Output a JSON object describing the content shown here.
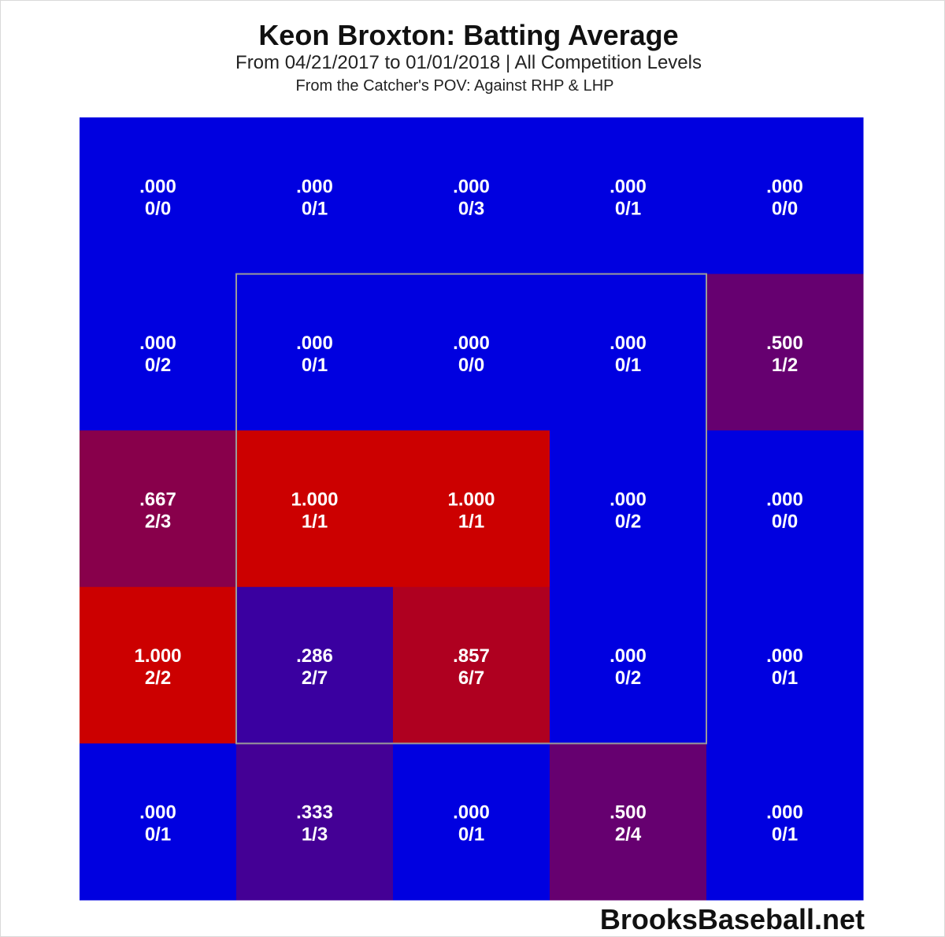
{
  "title": "Keon Broxton: Batting Average",
  "subtitle": "From 04/21/2017 to 01/01/2018 | All Competition Levels",
  "subtitle2": "From the Catcher's POV:   Against RHP & LHP",
  "credit": "BrooksBaseball.net",
  "colors": {
    "low": "#0000e0",
    "high": "#cc0000",
    "strike_zone_border": "#9a9a9a"
  },
  "chart_data": {
    "type": "heatmap",
    "title": "Keon Broxton: Batting Average",
    "rows": 5,
    "cols": 5,
    "strike_zone": {
      "rows": [
        1,
        3
      ],
      "cols": [
        1,
        3
      ]
    },
    "cells": [
      [
        {
          "avg": ".000",
          "ratio": "0/0",
          "value": 0.0
        },
        {
          "avg": ".000",
          "ratio": "0/1",
          "value": 0.0
        },
        {
          "avg": ".000",
          "ratio": "0/3",
          "value": 0.0
        },
        {
          "avg": ".000",
          "ratio": "0/1",
          "value": 0.0
        },
        {
          "avg": ".000",
          "ratio": "0/0",
          "value": 0.0
        }
      ],
      [
        {
          "avg": ".000",
          "ratio": "0/2",
          "value": 0.0
        },
        {
          "avg": ".000",
          "ratio": "0/1",
          "value": 0.0
        },
        {
          "avg": ".000",
          "ratio": "0/0",
          "value": 0.0
        },
        {
          "avg": ".000",
          "ratio": "0/1",
          "value": 0.0
        },
        {
          "avg": ".500",
          "ratio": "1/2",
          "value": 0.5
        }
      ],
      [
        {
          "avg": ".667",
          "ratio": "2/3",
          "value": 0.667
        },
        {
          "avg": "1.000",
          "ratio": "1/1",
          "value": 1.0
        },
        {
          "avg": "1.000",
          "ratio": "1/1",
          "value": 1.0
        },
        {
          "avg": ".000",
          "ratio": "0/2",
          "value": 0.0
        },
        {
          "avg": ".000",
          "ratio": "0/0",
          "value": 0.0
        }
      ],
      [
        {
          "avg": "1.000",
          "ratio": "2/2",
          "value": 1.0
        },
        {
          "avg": ".286",
          "ratio": "2/7",
          "value": 0.286
        },
        {
          "avg": ".857",
          "ratio": "6/7",
          "value": 0.857
        },
        {
          "avg": ".000",
          "ratio": "0/2",
          "value": 0.0
        },
        {
          "avg": ".000",
          "ratio": "0/1",
          "value": 0.0
        }
      ],
      [
        {
          "avg": ".000",
          "ratio": "0/1",
          "value": 0.0
        },
        {
          "avg": ".333",
          "ratio": "1/3",
          "value": 0.333
        },
        {
          "avg": ".000",
          "ratio": "0/1",
          "value": 0.0
        },
        {
          "avg": ".500",
          "ratio": "2/4",
          "value": 0.5
        },
        {
          "avg": ".000",
          "ratio": "0/1",
          "value": 0.0
        }
      ]
    ]
  }
}
